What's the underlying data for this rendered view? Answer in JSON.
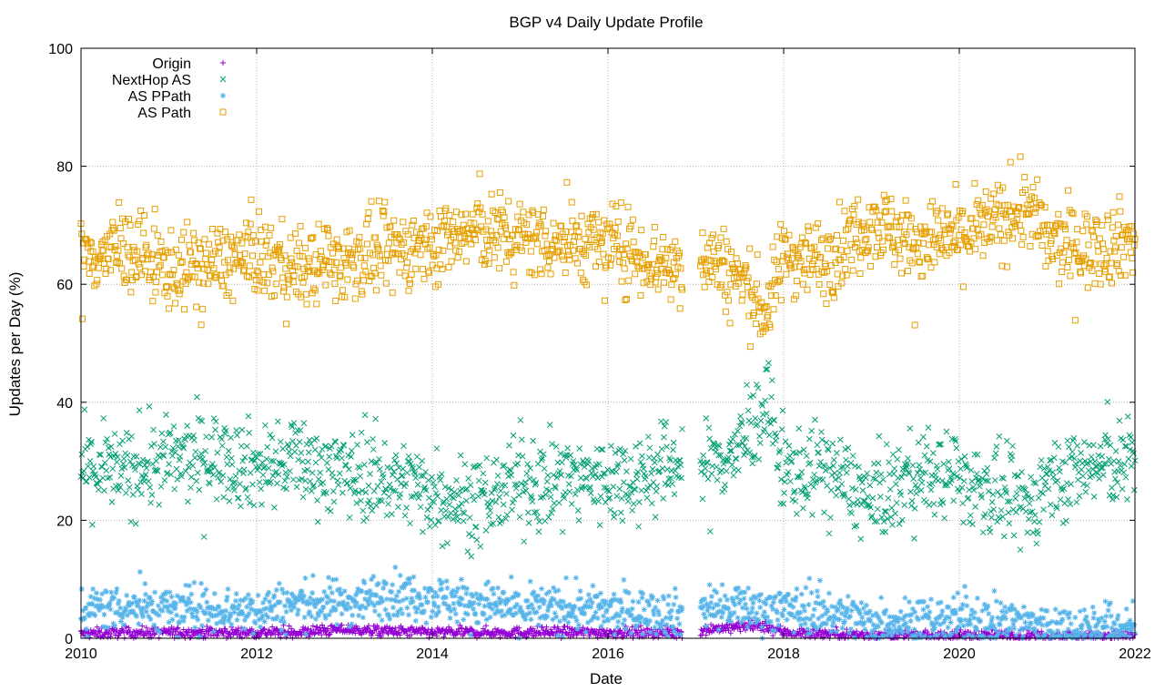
{
  "chart_data": {
    "type": "scatter",
    "title": "BGP v4 Daily Update Profile",
    "xlabel": "Date",
    "ylabel": "Updates per Day (%)",
    "xlim": [
      2010,
      2022
    ],
    "ylim": [
      0,
      100
    ],
    "x_ticks": [
      "2010",
      "2012",
      "2014",
      "2016",
      "2018",
      "2020",
      "2022"
    ],
    "y_ticks": [
      "0",
      "20",
      "40",
      "60",
      "80",
      "100"
    ],
    "grid": true,
    "legend_position": "top-left",
    "data_gap": [
      2016.85,
      2017.05
    ],
    "series": [
      {
        "name": "AS Path",
        "marker": "square-open",
        "color": "#e69f00",
        "x": [
          2010.0,
          2010.5,
          2011.0,
          2011.5,
          2012.0,
          2012.5,
          2013.0,
          2013.5,
          2014.0,
          2014.5,
          2015.0,
          2015.5,
          2016.0,
          2016.5,
          2016.8,
          2017.1,
          2017.5,
          2017.8,
          2018.0,
          2018.5,
          2019.0,
          2019.5,
          2020.0,
          2020.5,
          2020.8,
          2021.0,
          2021.5,
          2022.0
        ],
        "y": [
          64.5,
          66,
          62.5,
          63.5,
          65,
          62.5,
          64,
          65.5,
          67,
          69,
          68,
          67,
          67,
          64,
          63,
          65,
          61,
          55,
          65,
          64,
          71,
          67,
          68,
          71,
          73,
          67,
          66,
          68
        ]
      },
      {
        "name": "NextHop AS",
        "marker": "cross",
        "color": "#009e73",
        "x": [
          2010.0,
          2010.5,
          2011.0,
          2011.5,
          2012.0,
          2012.5,
          2013.0,
          2013.5,
          2014.0,
          2014.5,
          2015.0,
          2015.5,
          2016.0,
          2016.5,
          2016.8,
          2017.1,
          2017.5,
          2017.8,
          2018.0,
          2018.5,
          2019.0,
          2019.5,
          2020.0,
          2020.5,
          2020.8,
          2021.0,
          2021.5,
          2022.0
        ],
        "y": [
          29,
          28,
          30,
          31,
          29,
          30,
          28,
          27,
          25,
          23,
          26,
          27,
          27,
          28,
          30,
          29,
          32,
          40,
          28,
          29,
          23,
          28,
          27,
          24,
          22,
          27,
          29,
          30
        ]
      },
      {
        "name": "AS PPath",
        "marker": "star",
        "color": "#56b4e9",
        "x": [
          2010.0,
          2010.5,
          2011.0,
          2011.5,
          2012.0,
          2012.5,
          2013.0,
          2013.5,
          2014.0,
          2014.5,
          2015.0,
          2015.5,
          2016.0,
          2016.5,
          2016.8,
          2017.1,
          2017.5,
          2017.8,
          2018.0,
          2018.5,
          2019.0,
          2019.5,
          2020.0,
          2020.5,
          2020.8,
          2021.0,
          2021.5,
          2022.0
        ],
        "y": [
          5,
          5.5,
          5,
          5,
          5,
          6,
          6,
          7.5,
          7,
          6,
          5,
          5,
          4.5,
          4.5,
          4,
          5.5,
          5,
          5,
          5,
          4.5,
          3,
          3,
          3,
          3,
          2.5,
          2,
          2,
          2
        ]
      },
      {
        "name": "Origin",
        "marker": "plus",
        "color": "#9400d3",
        "x": [
          2010.0,
          2010.5,
          2011.0,
          2011.5,
          2012.0,
          2012.5,
          2013.0,
          2013.5,
          2014.0,
          2014.5,
          2015.0,
          2015.5,
          2016.0,
          2016.5,
          2016.8,
          2017.1,
          2017.5,
          2017.8,
          2018.0,
          2018.5,
          2019.0,
          2019.5,
          2020.0,
          2020.5,
          2020.8,
          2021.0,
          2021.5,
          2022.0
        ],
        "y": [
          0.8,
          1,
          1,
          1,
          1,
          1,
          1.5,
          1.2,
          1,
          1,
          1,
          1,
          1,
          1,
          0.8,
          1.5,
          2,
          2,
          1,
          0.8,
          0.5,
          0.5,
          0.5,
          0.5,
          0.5,
          0.4,
          0.4,
          0.4
        ]
      }
    ],
    "legend_order": [
      "Origin",
      "NextHop AS",
      "AS PPath",
      "AS Path"
    ]
  }
}
